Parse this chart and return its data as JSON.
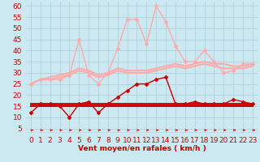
{
  "x": [
    0,
    1,
    2,
    3,
    4,
    5,
    6,
    7,
    8,
    9,
    10,
    11,
    12,
    13,
    14,
    15,
    16,
    17,
    18,
    19,
    20,
    21,
    22,
    23
  ],
  "series": [
    {
      "name": "rafales_max",
      "values": [
        25,
        27,
        27,
        27,
        29,
        45,
        29,
        25,
        30,
        41,
        54,
        54,
        43,
        60,
        53,
        42,
        35,
        35,
        40,
        35,
        30,
        31,
        34,
        34
      ],
      "color": "#ffaaaa",
      "linewidth": 1.0,
      "marker": "D",
      "markersize": 2.0
    },
    {
      "name": "rafales_moy1",
      "values": [
        25,
        27,
        28,
        29,
        30,
        32,
        31,
        29,
        30,
        32,
        31,
        31,
        31,
        32,
        33,
        34,
        33,
        34,
        35,
        34,
        34,
        33,
        33,
        34
      ],
      "color": "#ffaaaa",
      "linewidth": 1.5,
      "marker": null,
      "markersize": 0
    },
    {
      "name": "rafales_moy2",
      "values": [
        25,
        27,
        27,
        28,
        29,
        31,
        30,
        28,
        29,
        31,
        30,
        30,
        30,
        31,
        32,
        33,
        32,
        33,
        34,
        33,
        32,
        32,
        32,
        33
      ],
      "color": "#ffaaaa",
      "linewidth": 1.5,
      "marker": null,
      "markersize": 0
    },
    {
      "name": "vent_max",
      "values": [
        12,
        16,
        16,
        15,
        10,
        16,
        17,
        12,
        16,
        19,
        22,
        25,
        25,
        27,
        28,
        16,
        16,
        17,
        16,
        16,
        16,
        18,
        17,
        16
      ],
      "color": "#cc0000",
      "linewidth": 1.0,
      "marker": "D",
      "markersize": 2.0
    },
    {
      "name": "vent_moy1",
      "values": [
        16,
        16,
        16,
        16,
        16,
        16,
        16,
        16,
        16,
        16,
        16,
        16,
        16,
        16,
        16,
        16,
        16,
        16,
        16,
        16,
        16,
        16,
        16,
        16
      ],
      "color": "#cc0000",
      "linewidth": 2.0,
      "marker": null,
      "markersize": 0
    },
    {
      "name": "vent_moy2",
      "values": [
        15,
        15,
        15,
        15,
        15,
        15,
        15,
        15,
        15,
        15,
        15,
        15,
        15,
        15,
        15,
        15,
        15,
        15,
        15,
        15,
        15,
        15,
        15,
        15
      ],
      "color": "#cc0000",
      "linewidth": 1.5,
      "marker": null,
      "markersize": 0
    }
  ],
  "xlabel": "Vent moyen/en rafales ( km/h )",
  "ylim": [
    3,
    62
  ],
  "yticks": [
    5,
    10,
    15,
    20,
    25,
    30,
    35,
    40,
    45,
    50,
    55,
    60
  ],
  "xlim": [
    -0.5,
    23.5
  ],
  "xticks": [
    0,
    1,
    2,
    3,
    4,
    5,
    6,
    7,
    8,
    9,
    10,
    11,
    12,
    13,
    14,
    15,
    16,
    17,
    18,
    19,
    20,
    21,
    22,
    23
  ],
  "background_color": "#cce8f0",
  "grid_color": "#aaccd8",
  "text_color": "#cc0000",
  "axis_fontsize": 6.5
}
